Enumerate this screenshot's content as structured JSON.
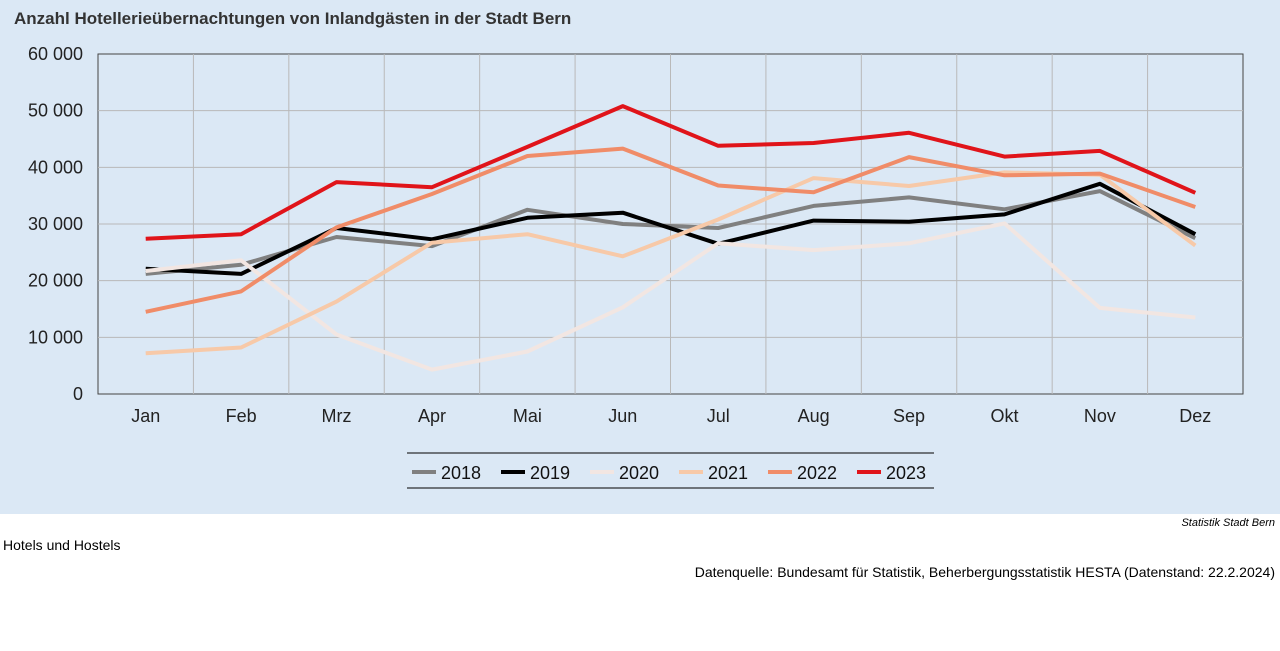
{
  "title": "Anzahl Hotellerieübernachtungen von Inlandgästen in der Stadt Bern",
  "source_credit": "Statistik Stadt Bern",
  "footnote": "Hotels und Hostels",
  "datasource": "Datenquelle: Bundesamt für Statistik, Beherbergungsstatistik HESTA (Datenstand: 22.2.2024)",
  "chart_data": {
    "type": "line",
    "title": "Anzahl Hotellerieübernachtungen von Inlandgästen in der Stadt Bern",
    "xlabel": "",
    "ylabel": "",
    "categories": [
      "Jan",
      "Feb",
      "Mrz",
      "Apr",
      "Mai",
      "Jun",
      "Jul",
      "Aug",
      "Sep",
      "Okt",
      "Nov",
      "Dez"
    ],
    "ylim": [
      0,
      60000
    ],
    "yticks": [
      0,
      10000,
      20000,
      30000,
      40000,
      50000,
      60000
    ],
    "ytick_labels": [
      "0",
      "10 000",
      "20 000",
      "30 000",
      "40 000",
      "50 000",
      "60 000"
    ],
    "grid": true,
    "legend_position": "bottom",
    "series": [
      {
        "name": "2018",
        "color": "#808080",
        "values": [
          21200,
          22800,
          27700,
          26100,
          32500,
          30000,
          29300,
          33200,
          34700,
          32600,
          35800,
          27500
        ]
      },
      {
        "name": "2019",
        "color": "#000000",
        "values": [
          22100,
          21200,
          29300,
          27300,
          31100,
          32000,
          26500,
          30600,
          30400,
          31700,
          37100,
          28200
        ]
      },
      {
        "name": "2020",
        "color": "#f2e6e2",
        "values": [
          21700,
          23600,
          10500,
          4300,
          7500,
          15300,
          26600,
          25400,
          26600,
          30100,
          15200,
          13500
        ]
      },
      {
        "name": "2021",
        "color": "#f7c9a8",
        "values": [
          7200,
          8200,
          16300,
          26700,
          28200,
          24300,
          30800,
          38100,
          36700,
          39100,
          38700,
          26200
        ]
      },
      {
        "name": "2022",
        "color": "#f08c68",
        "values": [
          14500,
          18100,
          29400,
          35300,
          42000,
          43300,
          36800,
          35600,
          41800,
          38600,
          38900,
          33000
        ]
      },
      {
        "name": "2023",
        "color": "#e0141a",
        "values": [
          27400,
          28200,
          37400,
          36500,
          43600,
          50800,
          43800,
          44300,
          46100,
          41900,
          42900,
          35500
        ]
      }
    ]
  }
}
